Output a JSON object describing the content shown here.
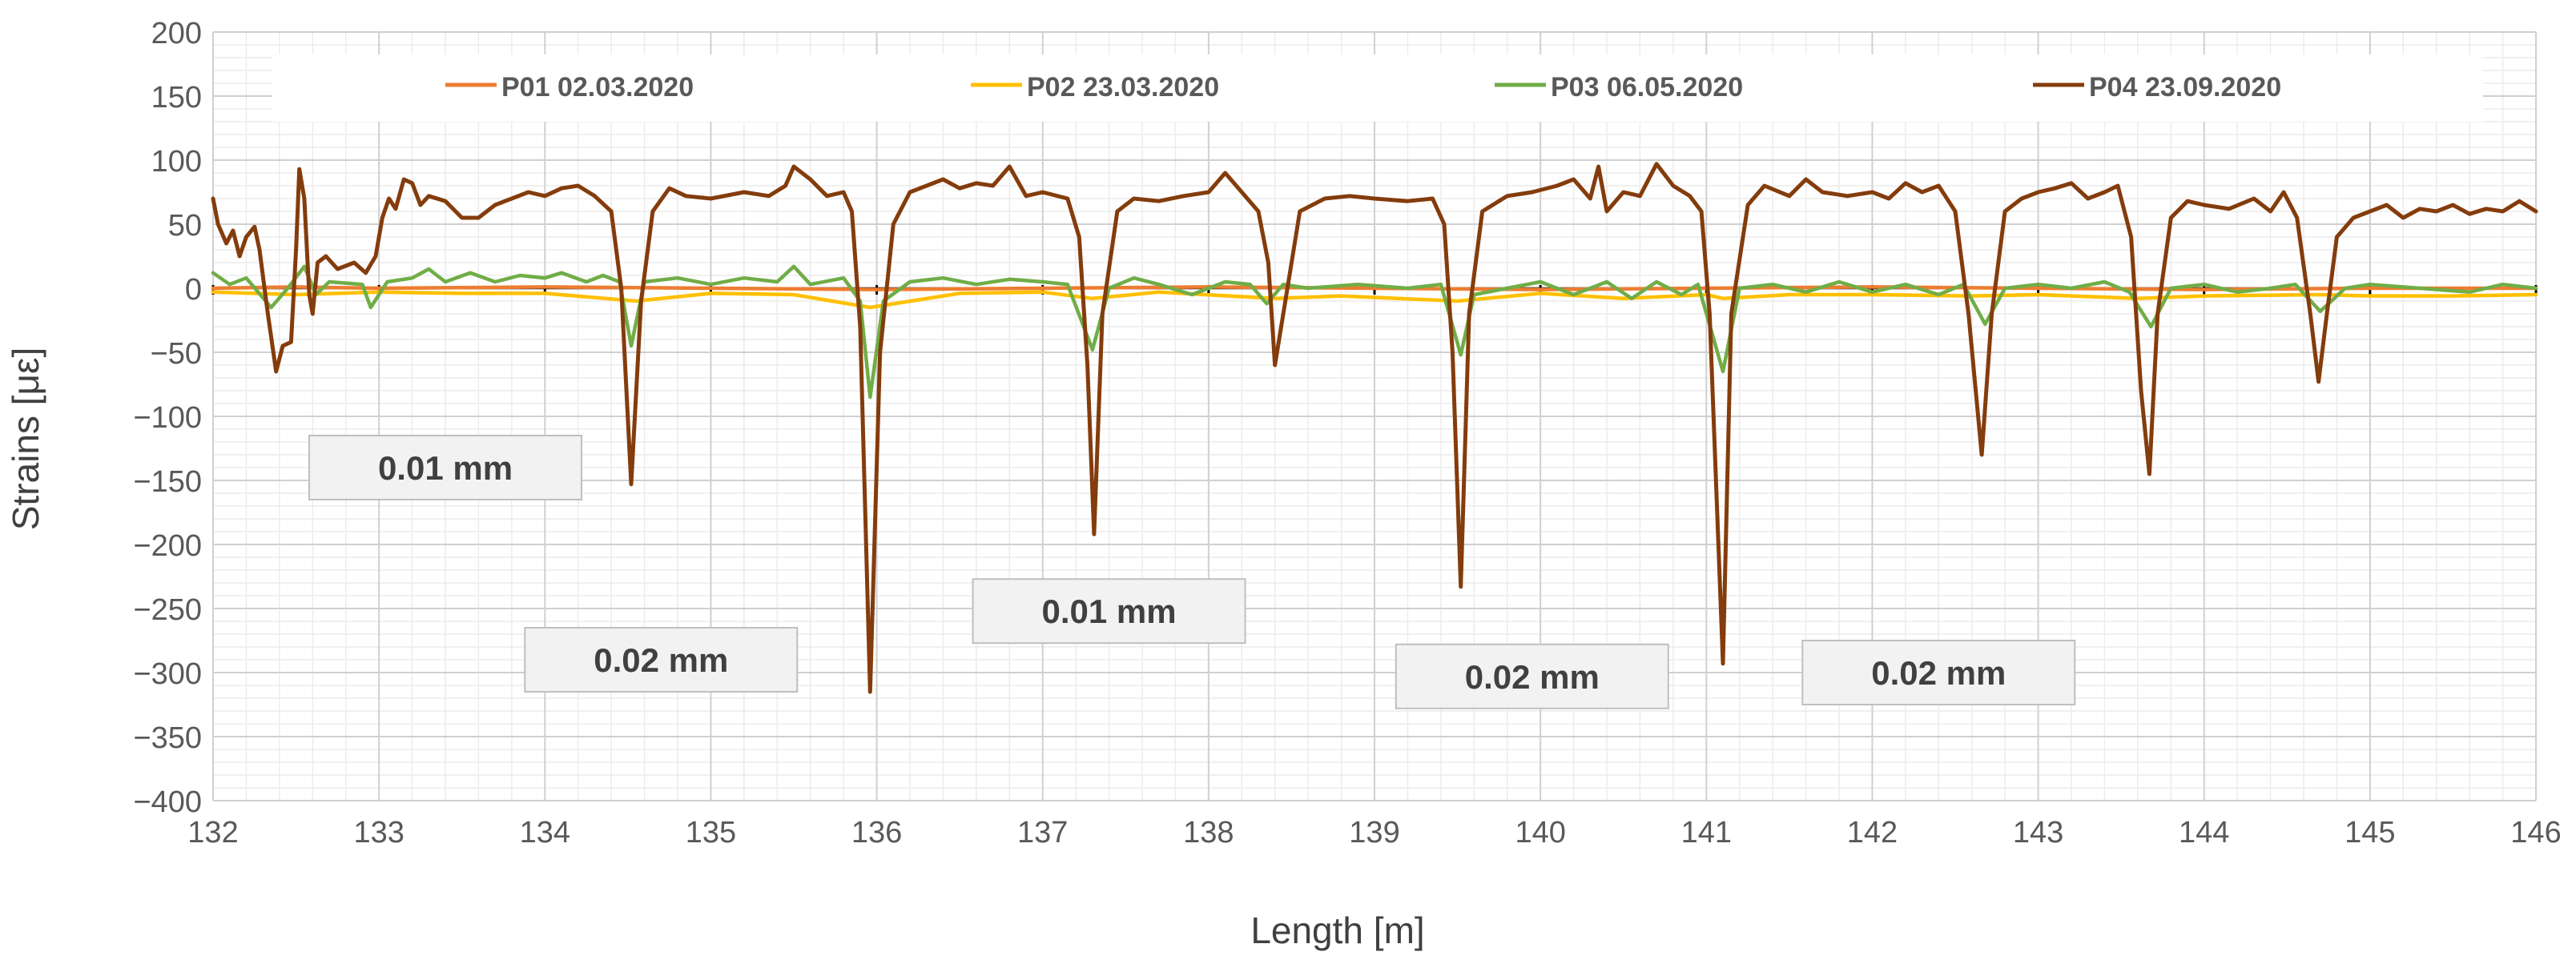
{
  "chart_data": {
    "type": "line",
    "title": "",
    "xlabel": "Length [m]",
    "ylabel": "Strains [με]",
    "xlim": [
      132,
      146
    ],
    "ylim": [
      -400,
      200
    ],
    "x_ticks": [
      132,
      133,
      134,
      135,
      136,
      137,
      138,
      139,
      140,
      141,
      142,
      143,
      144,
      145,
      146
    ],
    "y_ticks": [
      200,
      150,
      100,
      50,
      0,
      -50,
      -100,
      -150,
      -200,
      -250,
      -300,
      -350,
      -400
    ],
    "y_tick_labels": [
      "200",
      "150",
      "100",
      "50",
      "0",
      "−50",
      "−100",
      "−150",
      "−200",
      "−250",
      "−300",
      "−350",
      "−400"
    ],
    "grid": true,
    "legend_position": "top",
    "series": [
      {
        "name": "P01 02.03.2020",
        "color": "#ED7D31",
        "points": [
          [
            132.0,
            0
          ],
          [
            132.5,
            1
          ],
          [
            133.0,
            0
          ],
          [
            134.0,
            1
          ],
          [
            135.0,
            0
          ],
          [
            136.0,
            -1
          ],
          [
            137.0,
            0
          ],
          [
            138.0,
            1
          ],
          [
            139.0,
            0
          ],
          [
            140.0,
            -1
          ],
          [
            141.0,
            0
          ],
          [
            142.0,
            1
          ],
          [
            143.0,
            0
          ],
          [
            144.0,
            -1
          ],
          [
            145.0,
            0
          ],
          [
            146.0,
            0
          ]
        ]
      },
      {
        "name": "P02 23.03.2020",
        "color": "#FFC000",
        "points": [
          [
            132.0,
            -3
          ],
          [
            132.5,
            -5
          ],
          [
            133.0,
            -3
          ],
          [
            133.5,
            -4
          ],
          [
            134.0,
            -4
          ],
          [
            134.55,
            -10
          ],
          [
            135.0,
            -4
          ],
          [
            135.5,
            -5
          ],
          [
            135.96,
            -15
          ],
          [
            136.5,
            -4
          ],
          [
            137.0,
            -3
          ],
          [
            137.3,
            -8
          ],
          [
            137.7,
            -3
          ],
          [
            138.4,
            -8
          ],
          [
            138.8,
            -6
          ],
          [
            139.5,
            -10
          ],
          [
            140.0,
            -4
          ],
          [
            140.5,
            -8
          ],
          [
            141.0,
            -5
          ],
          [
            141.1,
            -8
          ],
          [
            141.5,
            -5
          ],
          [
            142.0,
            -5
          ],
          [
            142.6,
            -6
          ],
          [
            143.0,
            -5
          ],
          [
            143.6,
            -8
          ],
          [
            144.0,
            -6
          ],
          [
            144.7,
            -5
          ],
          [
            145.0,
            -6
          ],
          [
            145.5,
            -6
          ],
          [
            146.0,
            -5
          ]
        ]
      },
      {
        "name": "P03 06.05.2020",
        "color": "#70AD47",
        "points": [
          [
            132.0,
            12
          ],
          [
            132.1,
            3
          ],
          [
            132.2,
            8
          ],
          [
            132.35,
            -15
          ],
          [
            132.45,
            0
          ],
          [
            132.55,
            17
          ],
          [
            132.62,
            -5
          ],
          [
            132.7,
            5
          ],
          [
            132.9,
            3
          ],
          [
            132.95,
            -15
          ],
          [
            133.05,
            5
          ],
          [
            133.2,
            8
          ],
          [
            133.3,
            15
          ],
          [
            133.4,
            5
          ],
          [
            133.55,
            12
          ],
          [
            133.7,
            5
          ],
          [
            133.85,
            10
          ],
          [
            134.0,
            8
          ],
          [
            134.1,
            12
          ],
          [
            134.25,
            5
          ],
          [
            134.35,
            10
          ],
          [
            134.45,
            5
          ],
          [
            134.52,
            -45
          ],
          [
            134.6,
            5
          ],
          [
            134.8,
            8
          ],
          [
            135.0,
            3
          ],
          [
            135.2,
            8
          ],
          [
            135.4,
            5
          ],
          [
            135.5,
            17
          ],
          [
            135.6,
            3
          ],
          [
            135.8,
            8
          ],
          [
            135.9,
            -10
          ],
          [
            135.96,
            -85
          ],
          [
            136.04,
            -10
          ],
          [
            136.2,
            5
          ],
          [
            136.4,
            8
          ],
          [
            136.6,
            3
          ],
          [
            136.8,
            7
          ],
          [
            137.0,
            5
          ],
          [
            137.15,
            3
          ],
          [
            137.3,
            -48
          ],
          [
            137.4,
            0
          ],
          [
            137.55,
            8
          ],
          [
            137.7,
            3
          ],
          [
            137.9,
            -5
          ],
          [
            138.1,
            5
          ],
          [
            138.25,
            3
          ],
          [
            138.35,
            -12
          ],
          [
            138.45,
            3
          ],
          [
            138.6,
            0
          ],
          [
            138.9,
            3
          ],
          [
            139.2,
            0
          ],
          [
            139.4,
            3
          ],
          [
            139.52,
            -52
          ],
          [
            139.6,
            -5
          ],
          [
            139.8,
            0
          ],
          [
            140.0,
            5
          ],
          [
            140.2,
            -5
          ],
          [
            140.4,
            5
          ],
          [
            140.55,
            -8
          ],
          [
            140.7,
            5
          ],
          [
            140.85,
            -5
          ],
          [
            140.95,
            3
          ],
          [
            141.1,
            -65
          ],
          [
            141.2,
            0
          ],
          [
            141.4,
            3
          ],
          [
            141.6,
            -3
          ],
          [
            141.8,
            5
          ],
          [
            142.0,
            -3
          ],
          [
            142.2,
            3
          ],
          [
            142.4,
            -5
          ],
          [
            142.55,
            3
          ],
          [
            142.68,
            -28
          ],
          [
            142.8,
            0
          ],
          [
            143.0,
            3
          ],
          [
            143.2,
            0
          ],
          [
            143.4,
            5
          ],
          [
            143.55,
            -3
          ],
          [
            143.68,
            -30
          ],
          [
            143.8,
            0
          ],
          [
            144.0,
            3
          ],
          [
            144.2,
            -3
          ],
          [
            144.4,
            0
          ],
          [
            144.55,
            3
          ],
          [
            144.7,
            -18
          ],
          [
            144.85,
            0
          ],
          [
            145.0,
            3
          ],
          [
            145.3,
            0
          ],
          [
            145.6,
            -3
          ],
          [
            145.8,
            3
          ],
          [
            146.0,
            0
          ]
        ]
      },
      {
        "name": "P04 23.09.2020",
        "color": "#843C0C",
        "points": [
          [
            132.0,
            70
          ],
          [
            132.03,
            50
          ],
          [
            132.08,
            35
          ],
          [
            132.12,
            45
          ],
          [
            132.16,
            25
          ],
          [
            132.2,
            40
          ],
          [
            132.25,
            48
          ],
          [
            132.28,
            30
          ],
          [
            132.33,
            -20
          ],
          [
            132.38,
            -65
          ],
          [
            132.42,
            -45
          ],
          [
            132.47,
            -42
          ],
          [
            132.5,
            30
          ],
          [
            132.52,
            93
          ],
          [
            132.55,
            70
          ],
          [
            132.58,
            -5
          ],
          [
            132.6,
            -20
          ],
          [
            132.63,
            20
          ],
          [
            132.68,
            25
          ],
          [
            132.75,
            15
          ],
          [
            132.85,
            20
          ],
          [
            132.92,
            12
          ],
          [
            132.98,
            25
          ],
          [
            133.02,
            55
          ],
          [
            133.06,
            70
          ],
          [
            133.1,
            62
          ],
          [
            133.15,
            85
          ],
          [
            133.2,
            82
          ],
          [
            133.25,
            65
          ],
          [
            133.3,
            72
          ],
          [
            133.4,
            68
          ],
          [
            133.5,
            55
          ],
          [
            133.6,
            55
          ],
          [
            133.7,
            65
          ],
          [
            133.8,
            70
          ],
          [
            133.9,
            75
          ],
          [
            134.0,
            72
          ],
          [
            134.1,
            78
          ],
          [
            134.2,
            80
          ],
          [
            134.3,
            72
          ],
          [
            134.4,
            60
          ],
          [
            134.46,
            0
          ],
          [
            134.52,
            -153
          ],
          [
            134.58,
            -10
          ],
          [
            134.65,
            60
          ],
          [
            134.75,
            78
          ],
          [
            134.85,
            72
          ],
          [
            135.0,
            70
          ],
          [
            135.2,
            75
          ],
          [
            135.35,
            72
          ],
          [
            135.45,
            80
          ],
          [
            135.5,
            95
          ],
          [
            135.6,
            85
          ],
          [
            135.7,
            72
          ],
          [
            135.8,
            75
          ],
          [
            135.85,
            60
          ],
          [
            135.9,
            -30
          ],
          [
            135.96,
            -315
          ],
          [
            136.02,
            -50
          ],
          [
            136.1,
            50
          ],
          [
            136.2,
            75
          ],
          [
            136.3,
            80
          ],
          [
            136.4,
            85
          ],
          [
            136.5,
            78
          ],
          [
            136.6,
            82
          ],
          [
            136.7,
            80
          ],
          [
            136.8,
            95
          ],
          [
            136.9,
            72
          ],
          [
            137.0,
            75
          ],
          [
            137.15,
            70
          ],
          [
            137.22,
            40
          ],
          [
            137.27,
            -60
          ],
          [
            137.31,
            -192
          ],
          [
            137.36,
            -20
          ],
          [
            137.45,
            60
          ],
          [
            137.55,
            70
          ],
          [
            137.7,
            68
          ],
          [
            137.85,
            72
          ],
          [
            138.0,
            75
          ],
          [
            138.1,
            90
          ],
          [
            138.2,
            75
          ],
          [
            138.3,
            60
          ],
          [
            138.36,
            20
          ],
          [
            138.4,
            -60
          ],
          [
            138.45,
            -20
          ],
          [
            138.55,
            60
          ],
          [
            138.7,
            70
          ],
          [
            138.85,
            72
          ],
          [
            139.0,
            70
          ],
          [
            139.2,
            68
          ],
          [
            139.35,
            70
          ],
          [
            139.42,
            50
          ],
          [
            139.47,
            -50
          ],
          [
            139.52,
            -233
          ],
          [
            139.57,
            -20
          ],
          [
            139.65,
            60
          ],
          [
            139.8,
            72
          ],
          [
            139.95,
            75
          ],
          [
            140.1,
            80
          ],
          [
            140.2,
            85
          ],
          [
            140.3,
            70
          ],
          [
            140.35,
            95
          ],
          [
            140.4,
            60
          ],
          [
            140.5,
            75
          ],
          [
            140.6,
            72
          ],
          [
            140.7,
            97
          ],
          [
            140.8,
            80
          ],
          [
            140.9,
            72
          ],
          [
            140.97,
            60
          ],
          [
            141.02,
            -20
          ],
          [
            141.1,
            -293
          ],
          [
            141.15,
            -20
          ],
          [
            141.25,
            65
          ],
          [
            141.35,
            80
          ],
          [
            141.5,
            72
          ],
          [
            141.6,
            85
          ],
          [
            141.7,
            75
          ],
          [
            141.85,
            72
          ],
          [
            142.0,
            75
          ],
          [
            142.1,
            70
          ],
          [
            142.2,
            82
          ],
          [
            142.3,
            75
          ],
          [
            142.4,
            80
          ],
          [
            142.5,
            60
          ],
          [
            142.58,
            -20
          ],
          [
            142.66,
            -130
          ],
          [
            142.72,
            -20
          ],
          [
            142.8,
            60
          ],
          [
            142.9,
            70
          ],
          [
            143.0,
            75
          ],
          [
            143.1,
            78
          ],
          [
            143.2,
            82
          ],
          [
            143.3,
            70
          ],
          [
            143.4,
            75
          ],
          [
            143.48,
            80
          ],
          [
            143.56,
            40
          ],
          [
            143.62,
            -80
          ],
          [
            143.67,
            -145
          ],
          [
            143.72,
            -20
          ],
          [
            143.8,
            55
          ],
          [
            143.9,
            68
          ],
          [
            144.0,
            65
          ],
          [
            144.15,
            62
          ],
          [
            144.3,
            70
          ],
          [
            144.4,
            60
          ],
          [
            144.48,
            75
          ],
          [
            144.56,
            55
          ],
          [
            144.64,
            -20
          ],
          [
            144.69,
            -73
          ],
          [
            144.74,
            -20
          ],
          [
            144.8,
            40
          ],
          [
            144.9,
            55
          ],
          [
            145.0,
            60
          ],
          [
            145.1,
            65
          ],
          [
            145.2,
            55
          ],
          [
            145.3,
            62
          ],
          [
            145.4,
            60
          ],
          [
            145.5,
            65
          ],
          [
            145.6,
            58
          ],
          [
            145.7,
            62
          ],
          [
            145.8,
            60
          ],
          [
            145.9,
            68
          ],
          [
            146.0,
            60
          ]
        ]
      }
    ],
    "annotations": [
      {
        "text": "0.01 mm",
        "x": 133.4,
        "y": -140
      },
      {
        "text": "0.02 mm",
        "x": 134.7,
        "y": -290
      },
      {
        "text": "0.01 mm",
        "x": 137.4,
        "y": -252
      },
      {
        "text": "0.02 mm",
        "x": 139.95,
        "y": -303
      },
      {
        "text": "0.02 mm",
        "x": 142.4,
        "y": -300
      }
    ]
  }
}
